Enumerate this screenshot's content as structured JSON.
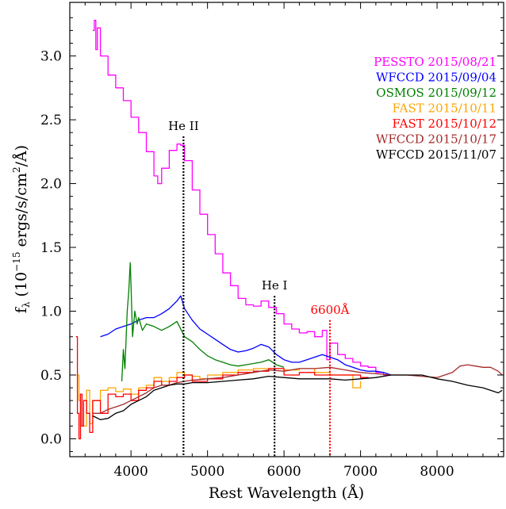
{
  "chart_data": {
    "type": "line",
    "xlabel": "Rest Wavelength (Å)",
    "ylabel_parts": {
      "base": "f",
      "sub": "λ",
      "open": " (10",
      "exp": "−15",
      "unit": " ergs/s/cm",
      "sq": "2",
      "close": "/Å)"
    },
    "xlim": [
      3200,
      8870
    ],
    "ylim": [
      -0.14,
      3.42
    ],
    "x_ticks": [
      {
        "value": 4000,
        "label": "4000"
      },
      {
        "value": 5000,
        "label": "5000"
      },
      {
        "value": 6000,
        "label": "6000"
      },
      {
        "value": 7000,
        "label": "7000"
      },
      {
        "value": 8000,
        "label": "8000"
      }
    ],
    "y_ticks": [
      {
        "value": 0.0,
        "label": "0.0"
      },
      {
        "value": 0.5,
        "label": "0.5"
      },
      {
        "value": 1.0,
        "label": "1.0"
      },
      {
        "value": 1.5,
        "label": "1.5"
      },
      {
        "value": 2.0,
        "label": "2.0"
      },
      {
        "value": 2.5,
        "label": "2.5"
      },
      {
        "value": 3.0,
        "label": "3.0"
      }
    ],
    "legend_position": "top-right",
    "series": [
      {
        "name": "PESSTO 2015/08/21",
        "color": "#ff00ff",
        "step": true,
        "x": [
          3500,
          3520,
          3540,
          3560,
          3600,
          3700,
          3800,
          3900,
          4000,
          4100,
          4200,
          4300,
          4350,
          4400,
          4500,
          4600,
          4650,
          4700,
          4800,
          4900,
          5000,
          5100,
          5200,
          5300,
          5400,
          5500,
          5600,
          5700,
          5800,
          5900,
          6000,
          6100,
          6200,
          6300,
          6400,
          6500,
          6560,
          6600,
          6700,
          6800,
          6900,
          7000,
          7100,
          7200,
          7300,
          7400
        ],
        "y": [
          3.2,
          3.28,
          3.05,
          3.22,
          3.0,
          2.85,
          2.75,
          2.65,
          2.52,
          2.4,
          2.25,
          2.06,
          2.0,
          2.12,
          2.26,
          2.31,
          2.3,
          2.18,
          1.95,
          1.76,
          1.6,
          1.45,
          1.3,
          1.2,
          1.1,
          1.05,
          1.04,
          1.08,
          1.03,
          0.98,
          0.9,
          0.86,
          0.83,
          0.84,
          0.8,
          0.85,
          0.62,
          0.75,
          0.66,
          0.63,
          0.6,
          0.57,
          0.56,
          0.52,
          0.5,
          0.5
        ]
      },
      {
        "name": "WFCCD 2015/09/04",
        "color": "#0000ff",
        "step": false,
        "x": [
          3600,
          3700,
          3800,
          3900,
          4000,
          4100,
          4200,
          4300,
          4400,
          4500,
          4600,
          4650,
          4700,
          4800,
          4900,
          5000,
          5100,
          5200,
          5300,
          5400,
          5500,
          5600,
          5700,
          5800,
          5900,
          6000,
          6100,
          6200,
          6300,
          6400,
          6500,
          6600,
          6700,
          6800,
          6900,
          7000,
          7100,
          7200,
          7300,
          7400
        ],
        "y": [
          0.8,
          0.82,
          0.86,
          0.88,
          0.9,
          0.93,
          0.95,
          0.95,
          0.98,
          1.02,
          1.08,
          1.12,
          1.02,
          0.93,
          0.86,
          0.82,
          0.78,
          0.74,
          0.7,
          0.68,
          0.69,
          0.71,
          0.74,
          0.72,
          0.66,
          0.62,
          0.6,
          0.6,
          0.62,
          0.64,
          0.66,
          0.64,
          0.62,
          0.58,
          0.56,
          0.54,
          0.53,
          0.53,
          0.52,
          0.5
        ]
      },
      {
        "name": "OSMOS 2015/09/12",
        "color": "#008000",
        "step": false,
        "x": [
          3880,
          3900,
          3920,
          3950,
          3970,
          3990,
          4000,
          4020,
          4050,
          4080,
          4100,
          4150,
          4200,
          4300,
          4400,
          4500,
          4600,
          4700,
          4800,
          4900,
          5000,
          5100,
          5200,
          5300,
          5400,
          5500,
          5600,
          5700,
          5800,
          5900,
          6000
        ],
        "y": [
          0.45,
          0.7,
          0.55,
          1.0,
          1.15,
          1.38,
          1.2,
          0.8,
          1.0,
          0.9,
          0.95,
          0.85,
          0.9,
          0.88,
          0.85,
          0.88,
          0.92,
          0.8,
          0.76,
          0.7,
          0.65,
          0.62,
          0.6,
          0.58,
          0.57,
          0.58,
          0.59,
          0.6,
          0.62,
          0.58,
          0.56
        ]
      },
      {
        "name": "FAST 2015/10/11",
        "color": "#ffa500",
        "step": true,
        "x": [
          3300,
          3320,
          3340,
          3380,
          3420,
          3460,
          3500,
          3600,
          3700,
          3800,
          3900,
          4000,
          4100,
          4200,
          4300,
          4400,
          4500,
          4600,
          4700,
          4800,
          4900,
          5000,
          5200,
          5400,
          5600,
          5800,
          6000,
          6200,
          6400,
          6600,
          6800,
          6900,
          7000
        ],
        "y": [
          0.5,
          0.3,
          0.1,
          0.1,
          0.38,
          0.12,
          0.3,
          0.38,
          0.4,
          0.37,
          0.39,
          0.35,
          0.4,
          0.42,
          0.48,
          0.45,
          0.48,
          0.52,
          0.5,
          0.49,
          0.47,
          0.5,
          0.52,
          0.54,
          0.55,
          0.55,
          0.54,
          0.55,
          0.52,
          0.5,
          0.5,
          0.4,
          0.45
        ]
      },
      {
        "name": "FAST 2015/10/12",
        "color": "#ff0000",
        "step": true,
        "x": [
          3280,
          3300,
          3320,
          3340,
          3360,
          3380,
          3420,
          3460,
          3500,
          3600,
          3700,
          3800,
          3900,
          4000,
          4100,
          4200,
          4300,
          4400,
          4500,
          4600,
          4700,
          4800,
          5000,
          5200,
          5400,
          5600,
          5800,
          6000,
          6200,
          6400,
          6600,
          6800,
          7000,
          7100
        ],
        "y": [
          0.8,
          0.2,
          0.0,
          0.35,
          0.1,
          0.3,
          0.2,
          0.05,
          0.3,
          0.2,
          0.35,
          0.33,
          0.35,
          0.3,
          0.38,
          0.4,
          0.45,
          0.42,
          0.45,
          0.48,
          0.5,
          0.45,
          0.47,
          0.5,
          0.52,
          0.53,
          0.55,
          0.5,
          0.52,
          0.5,
          0.5,
          0.5,
          0.48,
          0.47
        ]
      },
      {
        "name": "WFCCD 2015/10/17",
        "color": "#a52a2a",
        "step": false,
        "x": [
          3500,
          3600,
          3700,
          3800,
          3900,
          4000,
          4100,
          4200,
          4300,
          4400,
          4500,
          4600,
          4700,
          4800,
          5000,
          5200,
          5400,
          5600,
          5800,
          6000,
          6200,
          6400,
          6600,
          6800,
          7000,
          7200,
          7400,
          7600,
          7800,
          8000,
          8200,
          8300,
          8400,
          8500,
          8600,
          8700,
          8800,
          8850
        ],
        "y": [
          0.2,
          0.2,
          0.23,
          0.25,
          0.27,
          0.3,
          0.33,
          0.36,
          0.4,
          0.42,
          0.42,
          0.44,
          0.45,
          0.46,
          0.47,
          0.48,
          0.5,
          0.52,
          0.54,
          0.53,
          0.55,
          0.55,
          0.56,
          0.54,
          0.52,
          0.51,
          0.5,
          0.5,
          0.49,
          0.48,
          0.52,
          0.57,
          0.58,
          0.57,
          0.56,
          0.56,
          0.53,
          0.5
        ]
      },
      {
        "name": "WFCCD 2015/11/07",
        "color": "#000000",
        "step": false,
        "x": [
          3500,
          3600,
          3700,
          3800,
          3900,
          4000,
          4100,
          4200,
          4300,
          4400,
          4500,
          4600,
          4700,
          4800,
          5000,
          5200,
          5400,
          5600,
          5800,
          6000,
          6200,
          6400,
          6600,
          6800,
          7000,
          7200,
          7400,
          7600,
          7800,
          8000,
          8200,
          8400,
          8600,
          8800,
          8850
        ],
        "y": [
          0.18,
          0.15,
          0.16,
          0.2,
          0.22,
          0.27,
          0.3,
          0.33,
          0.38,
          0.4,
          0.42,
          0.43,
          0.43,
          0.44,
          0.44,
          0.45,
          0.46,
          0.47,
          0.49,
          0.48,
          0.47,
          0.47,
          0.47,
          0.46,
          0.47,
          0.48,
          0.5,
          0.5,
          0.5,
          0.47,
          0.45,
          0.42,
          0.4,
          0.36,
          0.38
        ]
      }
    ],
    "vlines": [
      {
        "x": 4686,
        "label": "He II",
        "color": "#000000",
        "y_top": 2.37
      },
      {
        "x": 5876,
        "label": "He I",
        "color": "#000000",
        "y_top": 1.12
      },
      {
        "x": 6600,
        "label": "6600Å",
        "color": "#ff0000",
        "y_top": 0.93
      }
    ]
  }
}
